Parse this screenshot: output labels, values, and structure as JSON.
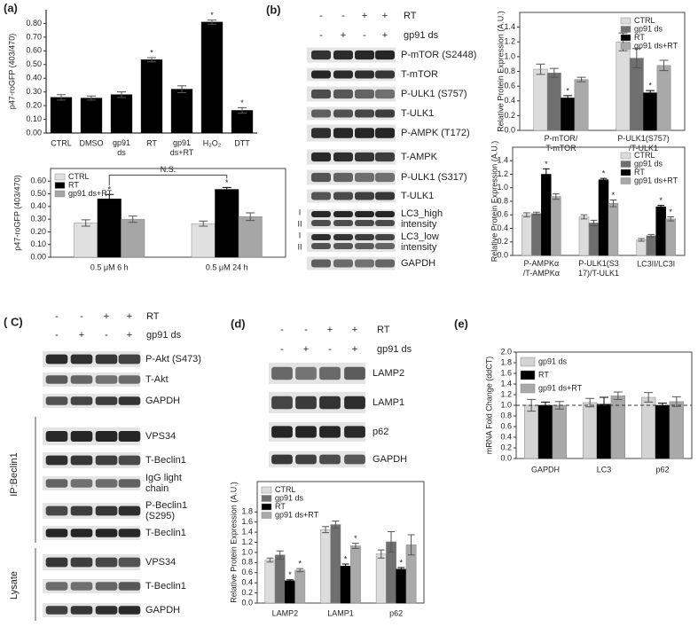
{
  "panels": {
    "a": "(a)",
    "b": "(b)",
    "c": "( C)",
    "d": "(d)",
    "e": "(e)"
  },
  "blots": [
    {
      "conditions": [
        {
          "name": "RT",
          "signs": [
            "-",
            "-",
            "+",
            "+"
          ]
        },
        {
          "name": "gp91 ds",
          "signs": [
            "-",
            "+",
            "-",
            "+"
          ]
        }
      ],
      "rows": [
        "P-mTOR (S2448)",
        "T-mTOR",
        "P-ULK1 (S757)",
        "T-ULK1",
        "P-AMPK (T172)",
        "T-AMPK",
        "P-ULK1 (S317)",
        "T-ULK1",
        "LC3_high\nintensity",
        "LC3_low\nintensity",
        "GAPDH"
      ],
      "band_markers": [
        "I",
        "II",
        "I",
        "II"
      ]
    },
    {
      "conditions": [
        {
          "name": "RT",
          "signs": [
            "-",
            "-",
            "+",
            "+"
          ]
        },
        {
          "name": "gp91 ds",
          "signs": [
            "-",
            "+",
            "-",
            "+"
          ]
        }
      ],
      "rows": [
        "P-Akt (S473)",
        "T-Akt",
        "GAPDH",
        "VPS34",
        "T-Beclin1",
        "IgG light\nchain",
        "P-Beclin1\n(S295)",
        "T-Beclin1",
        "VPS34",
        "T-Beclin1",
        "GAPDH"
      ],
      "groups": [
        "IP:Beclin1",
        "Lysate"
      ]
    },
    {
      "conditions": [
        {
          "name": "RT",
          "signs": [
            "-",
            "-",
            "+",
            "+"
          ]
        },
        {
          "name": "gp91 ds",
          "signs": [
            "-",
            "+",
            "-",
            "+"
          ]
        }
      ],
      "rows": [
        "LAMP2",
        "LAMP1",
        "p62",
        "GAPDH"
      ]
    }
  ],
  "chart_data": [
    {
      "type": "bar",
      "ylabel": "p47-roGFP (403/470)",
      "categories": [
        "CTRL",
        "DMSO",
        "gp91\nds",
        "RT",
        "gp91\nds+RT",
        "H₂O₂",
        "DTT"
      ],
      "values": [
        0.26,
        0.255,
        0.28,
        0.535,
        0.32,
        0.81,
        0.165
      ],
      "errors": [
        0.02,
        0.015,
        0.02,
        0.015,
        0.025,
        0.015,
        0.02
      ],
      "markers": [
        null,
        null,
        null,
        "*",
        null,
        "*",
        "*"
      ],
      "color": "#000000",
      "ylim": [
        0,
        0.9
      ],
      "yticks": [
        {
          "value": 0,
          "label": "0.00"
        },
        {
          "value": 0.1,
          "label": "0.10"
        },
        {
          "value": 0.2,
          "label": "0.20"
        },
        {
          "value": 0.3,
          "label": "0.30"
        },
        {
          "value": 0.4,
          "label": "0.40"
        },
        {
          "value": 0.5,
          "label": "0.50"
        },
        {
          "value": 0.6,
          "label": "0.60"
        },
        {
          "value": 0.7,
          "label": "0.70"
        },
        {
          "value": 0.8,
          "label": "0.80"
        }
      ]
    },
    {
      "type": "bar",
      "ylabel": "p47-roGFP (403/470)",
      "categories": [
        "0.5 μM 6 h",
        "0.5 μM 24 h"
      ],
      "series": [
        {
          "name": "CTRL",
          "color": "#e0e0e0",
          "values": [
            0.27,
            0.265
          ],
          "errors": [
            0.025,
            0.02
          ]
        },
        {
          "name": "RT",
          "color": "#000000",
          "values": [
            0.46,
            0.535
          ],
          "errors": [
            0.035,
            0.015
          ],
          "markers": [
            "*",
            "*"
          ]
        },
        {
          "name": "gp91 ds+RT",
          "color": "#a6a6a6",
          "values": [
            0.3,
            0.32
          ],
          "errors": [
            0.025,
            0.03
          ]
        }
      ],
      "bracket_label": "N.S.",
      "legend": "upper left",
      "ylim": [
        0,
        0.7
      ],
      "yticks": [
        {
          "value": 0,
          "label": "0.00"
        },
        {
          "value": 0.1,
          "label": "0.10"
        },
        {
          "value": 0.2,
          "label": "0.20"
        },
        {
          "value": 0.3,
          "label": "0.30"
        },
        {
          "value": 0.4,
          "label": "0.40"
        },
        {
          "value": 0.5,
          "label": "0.50"
        },
        {
          "value": 0.6,
          "label": "0.60"
        }
      ]
    },
    {
      "type": "bar",
      "ylabel": "Relative Protein Expression (A.U.)",
      "categories": [
        "P-mTOR/\nT-mTOR",
        "P-ULK1(S757)\n/T-ULK1"
      ],
      "series": [
        {
          "name": "CTRL",
          "color": "#dcdcdc",
          "values": [
            0.83,
            1.2
          ],
          "errors": [
            0.07,
            0.12
          ]
        },
        {
          "name": "gp91 ds",
          "color": "#6f6f6f",
          "values": [
            0.78,
            0.98
          ],
          "errors": [
            0.06,
            0.13
          ]
        },
        {
          "name": "RT",
          "color": "#000000",
          "values": [
            0.44,
            0.51
          ],
          "errors": [
            0.03,
            0.03
          ],
          "markers": [
            "*",
            "*"
          ]
        },
        {
          "name": "gp91 ds+RT",
          "color": "#a9a9a9",
          "values": [
            0.69,
            0.88
          ],
          "errors": [
            0.03,
            0.07
          ]
        }
      ],
      "legend": "upper right",
      "ylim": [
        0,
        1.6
      ],
      "yticks": [
        {
          "value": 0,
          "label": "0.0"
        },
        0.2,
        0.4,
        0.6,
        0.8,
        {
          "value": 1,
          "label": "1.0"
        },
        1.2,
        1.4
      ]
    },
    {
      "type": "bar",
      "ylabel": "Relative Protein Expression (A.U.)",
      "categories": [
        "P-AMPKα\n/T-AMPKα",
        "P-ULK1(S3\n17)/T-ULK1",
        "LC3II/LC3I"
      ],
      "series": [
        {
          "name": "CTRL",
          "color": "#dcdcdc",
          "values": [
            0.6,
            0.57,
            0.23
          ],
          "errors": [
            0.03,
            0.03,
            0.02
          ]
        },
        {
          "name": "gp91 ds",
          "color": "#6f6f6f",
          "values": [
            0.62,
            0.48,
            0.29
          ],
          "errors": [
            0.02,
            0.04,
            0.02
          ]
        },
        {
          "name": "RT",
          "color": "#000000",
          "values": [
            1.2,
            1.12,
            0.72
          ],
          "errors": [
            0.08,
            0.02,
            0.02
          ],
          "markers": [
            "*",
            "*",
            "*"
          ]
        },
        {
          "name": "gp91 ds+RT",
          "color": "#a9a9a9",
          "values": [
            0.87,
            0.77,
            0.54
          ],
          "errors": [
            0.04,
            0.05,
            0.03
          ],
          "markers": [
            null,
            "*",
            "*"
          ]
        }
      ],
      "legend": "upper right",
      "ylim": [
        0,
        1.6
      ],
      "yticks": [
        {
          "value": 0,
          "label": "0.0"
        },
        0.2,
        0.4,
        0.6,
        0.8,
        {
          "value": 1,
          "label": "1.0"
        },
        1.2,
        1.4
      ]
    },
    {
      "type": "bar",
      "ylabel": "Relative Protein Expression (A.U.)",
      "categories": [
        "LAMP2",
        "LAMP1",
        "p62"
      ],
      "series": [
        {
          "name": "CTRL",
          "color": "#dcdcdc",
          "values": [
            0.85,
            1.45,
            0.97
          ],
          "errors": [
            0.04,
            0.06,
            0.08
          ]
        },
        {
          "name": "gp91 ds",
          "color": "#6f6f6f",
          "values": [
            0.95,
            1.55,
            1.21
          ],
          "errors": [
            0.08,
            0.07,
            0.2
          ]
        },
        {
          "name": "RT",
          "color": "#000000",
          "values": [
            0.44,
            0.73,
            0.67
          ],
          "errors": [
            0.02,
            0.04,
            0.03
          ],
          "markers": [
            "*",
            "*",
            "*"
          ]
        },
        {
          "name": "gp91 ds+RT",
          "color": "#a9a9a9",
          "values": [
            0.65,
            1.13,
            1.15
          ],
          "errors": [
            0.03,
            0.05,
            0.2
          ],
          "markers": [
            "*",
            "*",
            null
          ]
        }
      ],
      "legend": "upper left",
      "ylim": [
        0,
        2.4
      ],
      "yticks": [
        {
          "value": 0,
          "label": "0.0"
        },
        0.2,
        0.4,
        0.6,
        0.8,
        {
          "value": 1,
          "label": "1.0"
        },
        1.2,
        1.4,
        1.6,
        1.8
      ]
    },
    {
      "type": "bar",
      "ylabel": "mRNA Fold Change (ddCT)",
      "categories": [
        "GAPDH",
        "LC3",
        "p62"
      ],
      "series": [
        {
          "name": "gp91 ds",
          "color": "#d3d3d3",
          "values": [
            1.0,
            1.05,
            1.15
          ],
          "errors": [
            0.11,
            0.08,
            0.09
          ]
        },
        {
          "name": "RT",
          "color": "#000000",
          "values": [
            1.0,
            1.02,
            1.0
          ],
          "errors": [
            0.06,
            0.13,
            0.04
          ]
        },
        {
          "name": "gp91 ds+RT",
          "color": "#a9a9a9",
          "values": [
            1.0,
            1.18,
            1.07
          ],
          "errors": [
            0.07,
            0.07,
            0.09
          ]
        }
      ],
      "reference_line": 1,
      "legend": "upper left",
      "ylim": [
        0,
        2
      ],
      "yticks": [
        {
          "value": 0,
          "label": "0.0"
        },
        0.2,
        0.4,
        0.6,
        0.8,
        {
          "value": 1,
          "label": "1.0"
        },
        1.2,
        1.4,
        1.6,
        1.8,
        {
          "value": 2,
          "label": "2.0"
        }
      ]
    }
  ]
}
